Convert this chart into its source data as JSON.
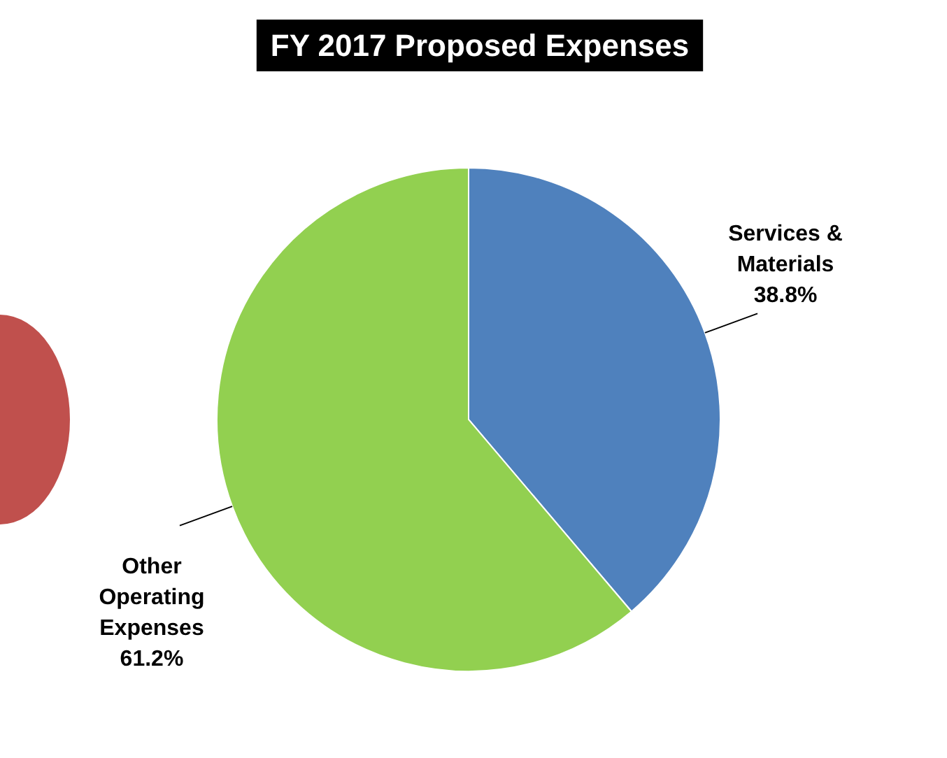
{
  "chart_data": {
    "type": "pie",
    "title": "FY 2017 Proposed Expenses",
    "categories": [
      "Services & Materials",
      "Other Operating Expenses"
    ],
    "values": [
      38.8,
      61.2
    ],
    "colors": [
      "#4f81bd",
      "#92d050"
    ],
    "value_labels": [
      "38.8%",
      "61.2%"
    ],
    "legend": false
  }
}
